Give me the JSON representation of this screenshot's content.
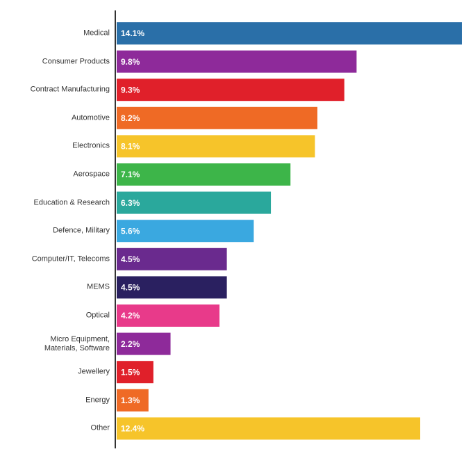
{
  "chart_data": {
    "type": "hbar",
    "categories": [
      "Medical",
      "Consumer Products",
      "Contract Manufacturing",
      "Automotive",
      "Electronics",
      "Aerospace",
      "Education & Research",
      "Defence, Military",
      "Computer/IT, Telecoms",
      "MEMS",
      "Optical",
      "Micro Equipment, Materials, Software",
      "Jewellery",
      "Energy",
      "Other"
    ],
    "values": [
      14.1,
      9.8,
      9.3,
      8.2,
      8.1,
      7.1,
      6.3,
      5.6,
      4.5,
      4.5,
      4.2,
      2.2,
      1.5,
      1.3,
      12.4
    ],
    "value_labels": [
      "14.1%",
      "9.8%",
      "9.3%",
      "8.2%",
      "8.1%",
      "7.1%",
      "6.3%",
      "5.6%",
      "4.5%",
      "4.5%",
      "4.2%",
      "2.2%",
      "1.5%",
      "1.3%",
      "12.4%"
    ],
    "colors": [
      "#2a6fa8",
      "#8e2a9a",
      "#e0202a",
      "#ef6a25",
      "#f6c42a",
      "#3db549",
      "#2aa89c",
      "#3aa8e0",
      "#6a2a8e",
      "#2a2060",
      "#e83a8a",
      "#8e2a9a",
      "#e0202a",
      "#ef6a25",
      "#f6c42a"
    ]
  }
}
